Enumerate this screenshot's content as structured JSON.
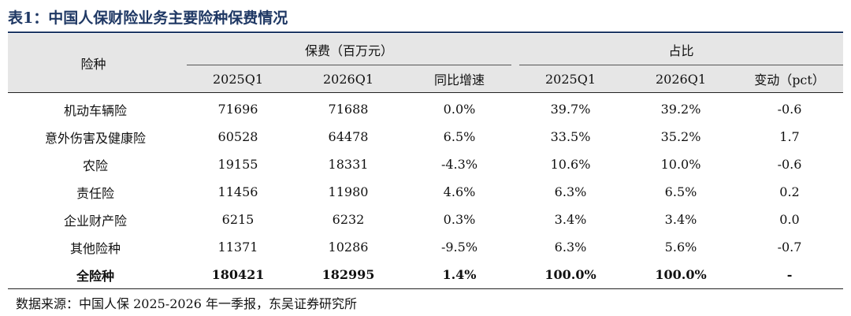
{
  "title": "表1：中国人保财险业务主要险种保费情况",
  "table": {
    "row_header": "险种",
    "group_premium": "保费（百万元）",
    "group_share": "占比",
    "sub_headers": [
      "2025Q1",
      "2026Q1",
      "同比增速",
      "2025Q1",
      "2026Q1",
      "变动（pct）"
    ],
    "rows": [
      [
        "机动车辆险",
        "71696",
        "71688",
        "0.0%",
        "39.7%",
        "39.2%",
        "-0.6"
      ],
      [
        "意外伤害及健康险",
        "60528",
        "64478",
        "6.5%",
        "33.5%",
        "35.2%",
        "1.7"
      ],
      [
        "农险",
        "19155",
        "18331",
        "-4.3%",
        "10.6%",
        "10.0%",
        "-0.6"
      ],
      [
        "责任险",
        "11456",
        "11980",
        "4.6%",
        "6.3%",
        "6.5%",
        "0.2"
      ],
      [
        "企业财产险",
        "6215",
        "6232",
        "0.3%",
        "3.4%",
        "3.4%",
        "0.0"
      ],
      [
        "其他险种",
        "11371",
        "10286",
        "-9.5%",
        "6.3%",
        "5.6%",
        "-0.7"
      ],
      [
        "全险种",
        "180421",
        "182995",
        "1.4%",
        "100.0%",
        "100.0%",
        "-"
      ]
    ]
  },
  "source": "数据来源：中国人保 2025-2026 年一季报，东吴证券研究所"
}
